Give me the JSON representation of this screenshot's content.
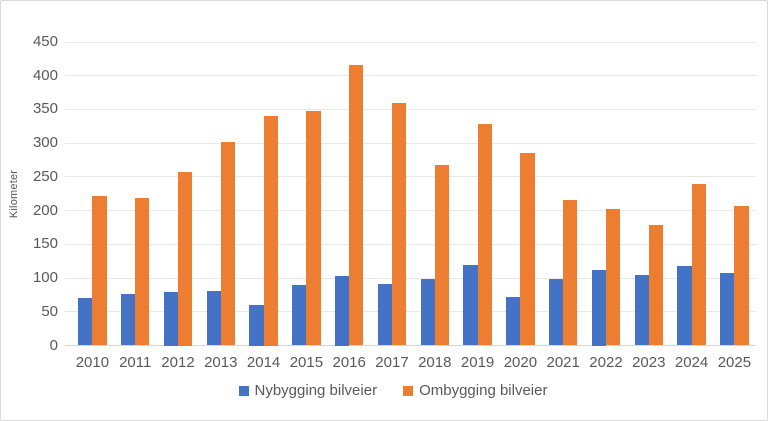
{
  "chart_data": {
    "type": "bar",
    "title": "",
    "xlabel": "",
    "ylabel": "Kilometer",
    "categories": [
      "2010",
      "2011",
      "2012",
      "2013",
      "2014",
      "2015",
      "2016",
      "2017",
      "2018",
      "2019",
      "2020",
      "2021",
      "2022",
      "2023",
      "2024",
      "2025"
    ],
    "series": [
      {
        "name": "Nybygging bilveier",
        "color": "#4472C4",
        "values": [
          70,
          77,
          80,
          81,
          60,
          90,
          103,
          91,
          98,
          120,
          72,
          98,
          112,
          104,
          118,
          108
        ]
      },
      {
        "name": "Ombygging bilveier",
        "color": "#ED7D31",
        "values": [
          222,
          219,
          258,
          302,
          341,
          348,
          416,
          359,
          267,
          328,
          285,
          216,
          202,
          179,
          239,
          207
        ]
      }
    ],
    "ylim": [
      0,
      450
    ],
    "ytick_step": 50,
    "grid": true,
    "legend_position": "bottom"
  }
}
